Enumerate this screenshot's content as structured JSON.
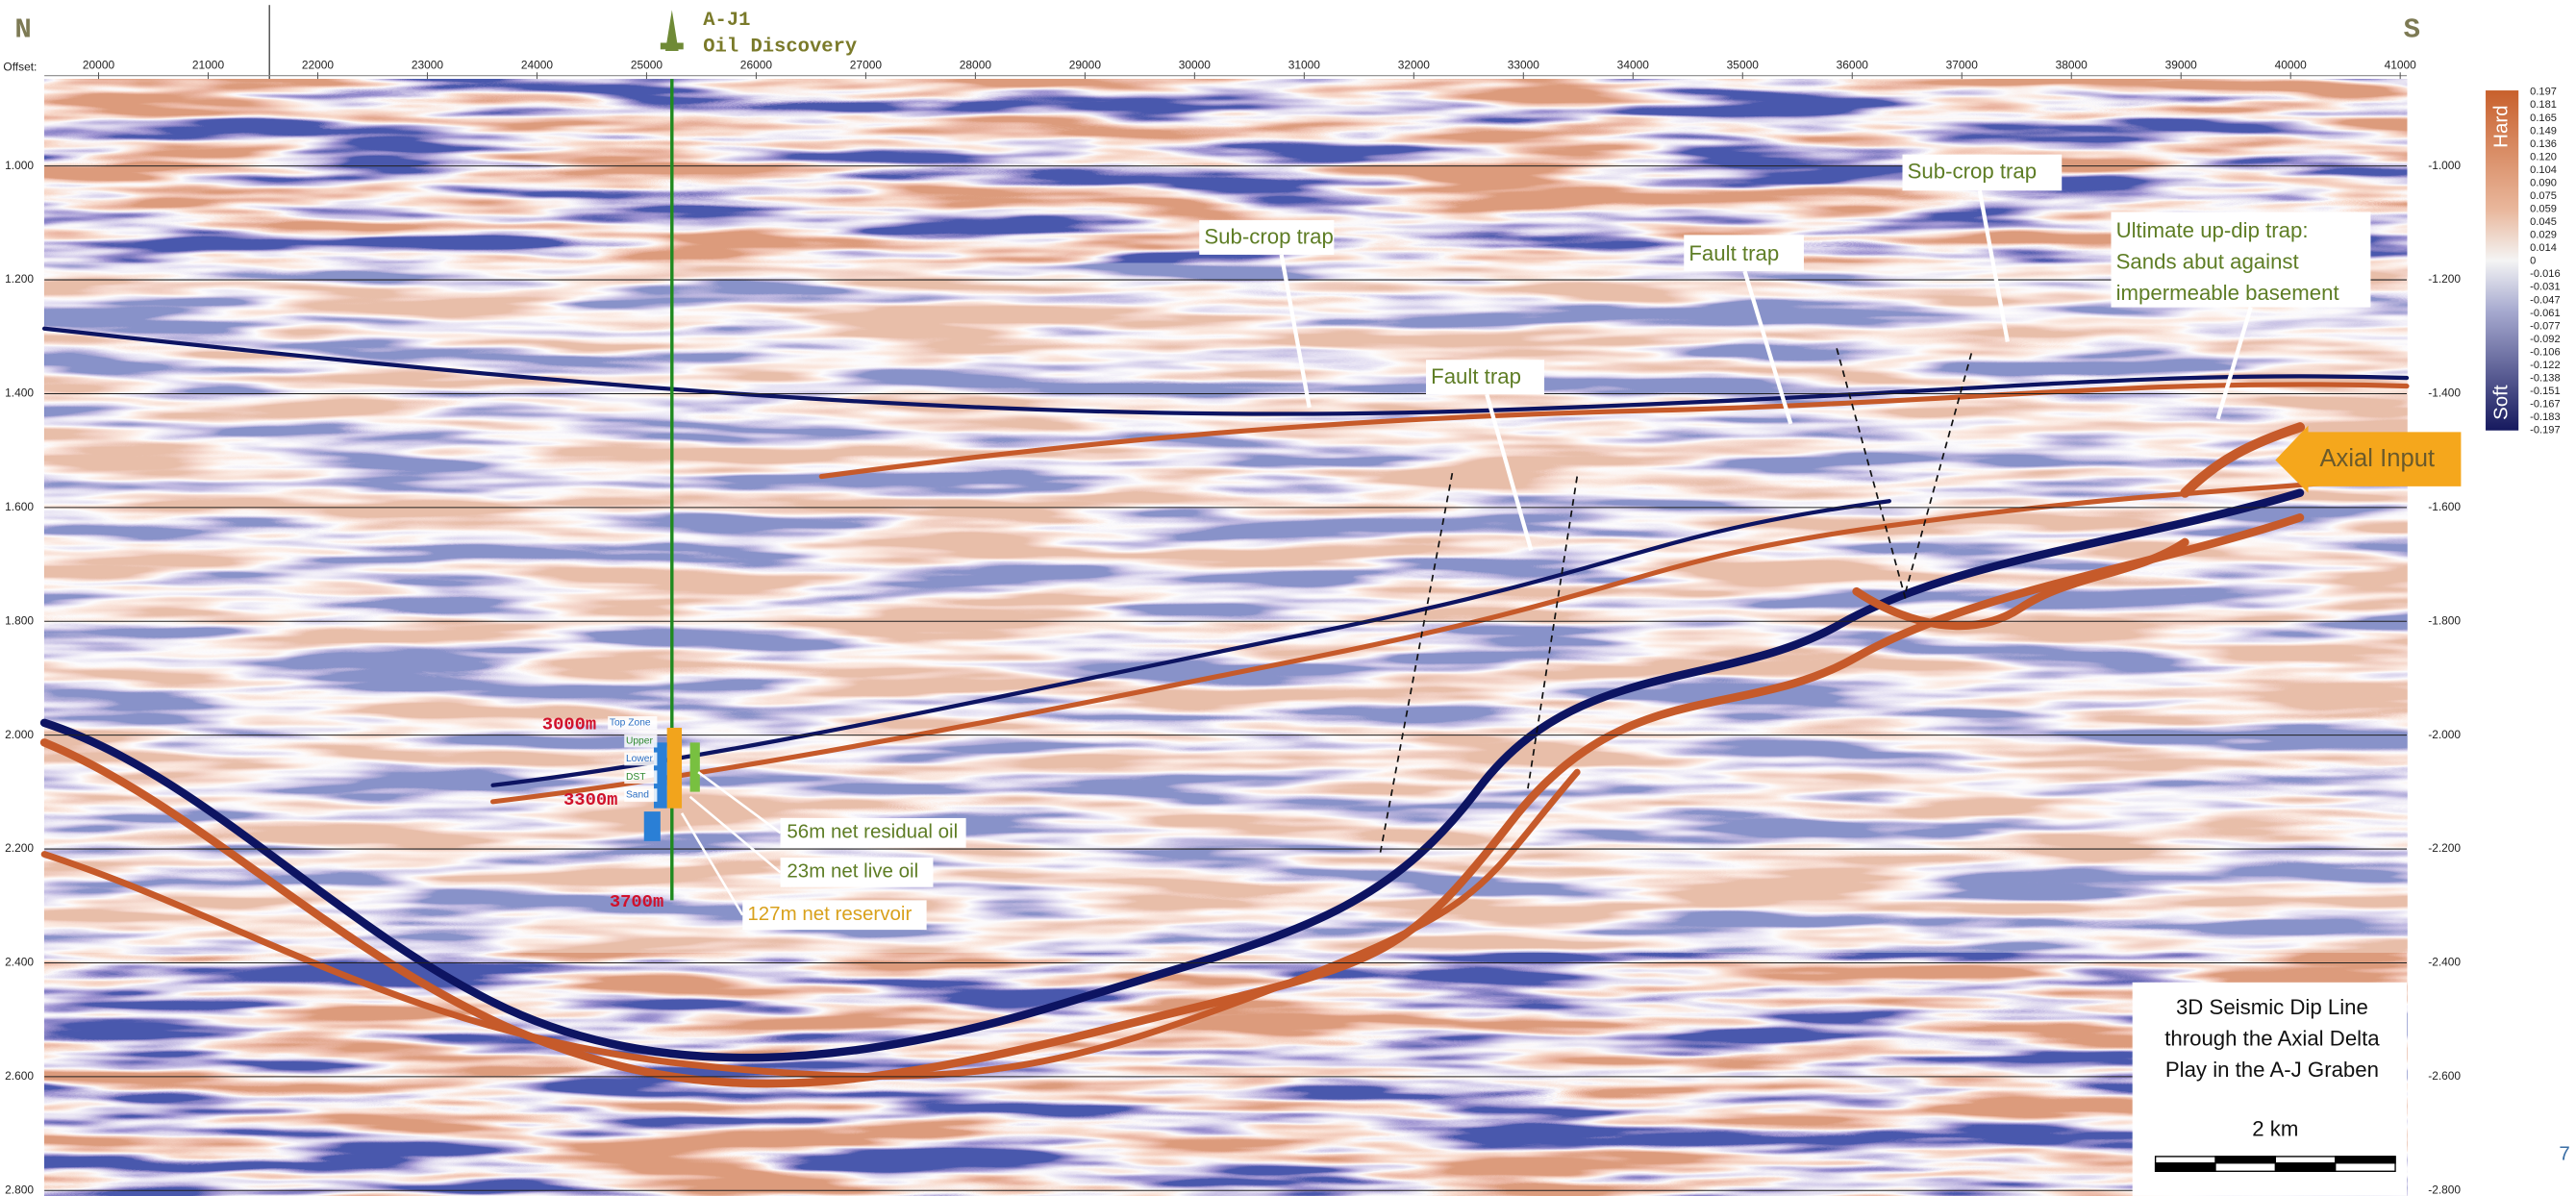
{
  "header": {
    "north": "N",
    "south": "S",
    "well_name": "A-J1",
    "well_title": "Oil Discovery"
  },
  "offset_axis": {
    "label": "Offset:",
    "ticks": [
      20000,
      21000,
      22000,
      23000,
      24000,
      25000,
      26000,
      27000,
      28000,
      29000,
      30000,
      31000,
      32000,
      33000,
      34000,
      35000,
      36000,
      37000,
      38000,
      39000,
      40000,
      41000
    ]
  },
  "time_axis": {
    "left_ticks": [
      "1.000",
      "1.200",
      "1.400",
      "1.600",
      "1.800",
      "2.000",
      "2.200",
      "2.400",
      "2.600",
      "2.800"
    ],
    "right_ticks": [
      "-1.000",
      "-1.200",
      "-1.400",
      "-1.600",
      "-1.800",
      "-2.000",
      "-2.200",
      "-2.400",
      "-2.600",
      "-2.800"
    ]
  },
  "colorbar": {
    "hard": "Hard",
    "soft": "Soft",
    "labels": [
      "0.197",
      "0.181",
      "0.165",
      "0.149",
      "0.136",
      "0.120",
      "0.104",
      "0.090",
      "0.075",
      "0.059",
      "0.045",
      "0.029",
      "0.014",
      "0",
      "-0.016",
      "-0.031",
      "-0.047",
      "-0.061",
      "-0.077",
      "-0.092",
      "-0.106",
      "-0.122",
      "-0.138",
      "-0.151",
      "-0.167",
      "-0.183",
      "-0.197"
    ]
  },
  "well": {
    "depths": [
      "3000m",
      "3300m",
      "3700m"
    ],
    "zones": [
      "Top Zone",
      "Upper",
      "Lower",
      "DST",
      "Sand"
    ]
  },
  "callouts": [
    "56m net residual oil",
    "23m net live oil",
    "127m net reservoir"
  ],
  "traps": [
    "Sub-crop trap",
    "Fault trap",
    "Fault trap",
    "Sub-crop trap"
  ],
  "ultimate_trap": [
    "Ultimate up-dip trap:",
    "Sands abut against",
    "impermeable basement"
  ],
  "axial_input": "Axial Input",
  "caption": [
    "3D Seismic Dip Line",
    "through the Axial Delta",
    "Play in the A-J Graben"
  ],
  "scale_label": "2 km",
  "page_number": "7"
}
